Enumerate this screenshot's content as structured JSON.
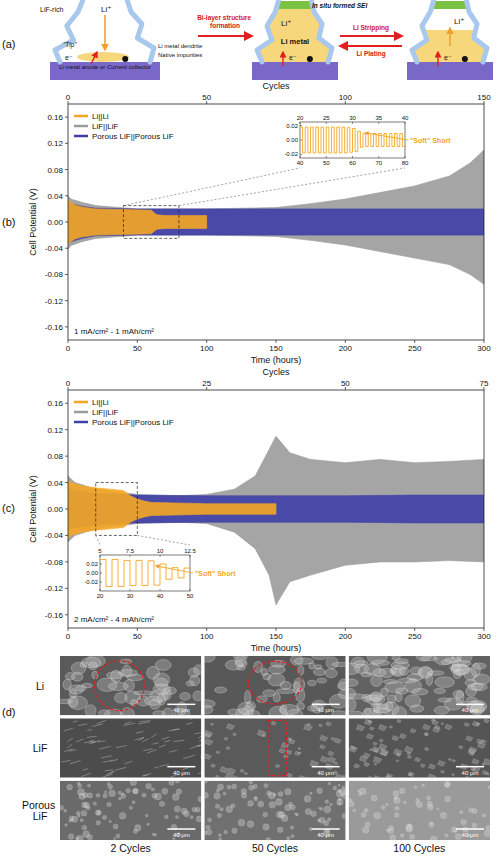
{
  "panel_labels": [
    "(a)",
    "(b)",
    "(c)",
    "(d)"
  ],
  "diagram": {
    "lif_rich": "LiF-rich",
    "tip": "\"Tip\"",
    "dendrite": "Li metal dendrite",
    "impurities": "Native impurities",
    "substrate": "Li metal anode or Current collector",
    "formation": "Bi-layer structure formation",
    "sei": "In situ formed SEI",
    "stripping": "Li Stripping",
    "plating": "Li Plating",
    "stages": [
      {
        "ion": "Li⁺",
        "electron": "e⁻"
      },
      {
        "ion": "Li⁺",
        "electron": "e⁻",
        "metal": "Li metal"
      },
      {
        "ion": "Li⁺",
        "electron": "e⁻"
      }
    ]
  },
  "chart_data": [
    {
      "type": "line",
      "x_label": "Time (hours)",
      "x2_label": "Cycles",
      "y_label": "Cell Potential (V)",
      "xlim": [
        0,
        300
      ],
      "xticks": [
        0,
        50,
        100,
        150,
        200,
        250,
        300
      ],
      "x2lim": [
        0,
        150
      ],
      "x2ticks": [
        0,
        50,
        100,
        150
      ],
      "ylim": [
        -0.18,
        0.18
      ],
      "yticks": [
        -0.16,
        -0.12,
        -0.08,
        -0.04,
        {
          "value": 0,
          "label": "0.00"
        },
        0.04,
        0.08,
        0.12,
        0.16
      ],
      "legend": "upper left",
      "annotation": "1 mA/cm² - 1 mAh/cm²",
      "series": [
        {
          "name": "Li||Li",
          "color": "#f5a623",
          "x": [
            0,
            2,
            5,
            10,
            20,
            40,
            60,
            64,
            70,
            80,
            90,
            100
          ],
          "upper": [
            0.035,
            0.03,
            0.026,
            0.023,
            0.02,
            0.019,
            0.018,
            0.011,
            0.01,
            0.01,
            0.01,
            0.01
          ],
          "lower": [
            -0.033,
            -0.03,
            -0.026,
            -0.023,
            -0.02,
            -0.019,
            -0.018,
            -0.011,
            -0.01,
            -0.01,
            -0.01,
            -0.01
          ]
        },
        {
          "name": "LiF||LiF",
          "color": "#9b9b9b",
          "x": [
            0,
            2,
            10,
            20,
            50,
            100,
            150,
            175,
            200,
            225,
            250,
            275,
            290,
            300
          ],
          "upper": [
            0.04,
            0.035,
            0.03,
            0.025,
            0.02,
            0.02,
            0.022,
            0.028,
            0.035,
            0.045,
            0.055,
            0.07,
            0.09,
            0.11
          ],
          "lower": [
            -0.042,
            -0.036,
            -0.03,
            -0.025,
            -0.02,
            -0.02,
            -0.022,
            -0.028,
            -0.035,
            -0.045,
            -0.055,
            -0.065,
            -0.08,
            -0.095
          ]
        },
        {
          "name": "Porous LiF||Porous LiF",
          "color": "#3f3fa8",
          "x": [
            0,
            2,
            10,
            20,
            50,
            100,
            150,
            200,
            250,
            300
          ],
          "upper": [
            0.03,
            0.028,
            0.024,
            0.021,
            0.02,
            0.02,
            0.02,
            0.02,
            0.02,
            0.02
          ],
          "lower": [
            -0.032,
            -0.03,
            -0.025,
            -0.021,
            -0.02,
            -0.02,
            -0.02,
            -0.02,
            -0.02,
            -0.02
          ]
        }
      ],
      "inset": {
        "type": "line",
        "line_style": "step",
        "color": "#f5a623",
        "annotation": "\"Soft\" Short",
        "xlim": [
          40,
          80
        ],
        "xticks": [
          40,
          50,
          60,
          70,
          80
        ],
        "x2lim": [
          20,
          40
        ],
        "x2ticks": [
          20,
          25,
          30,
          35,
          40
        ],
        "ylim": [
          -0.025,
          0.025
        ],
        "yticks": [
          -0.02,
          {
            "value": 0,
            "label": "0.00"
          },
          0.02
        ],
        "x": [
          40,
          41,
          42,
          43,
          44,
          45,
          46,
          47,
          48,
          49,
          50,
          51,
          52,
          53,
          54,
          55,
          56,
          57,
          58,
          59,
          60,
          61,
          62,
          63,
          64,
          65,
          66,
          67,
          68,
          69,
          70,
          71,
          72,
          73,
          74,
          75,
          76,
          77,
          78,
          79,
          80
        ],
        "values": [
          0.018,
          -0.018,
          0.018,
          -0.018,
          0.018,
          -0.018,
          0.018,
          -0.018,
          0.018,
          -0.018,
          0.018,
          -0.018,
          0.018,
          -0.018,
          0.018,
          -0.018,
          0.018,
          -0.018,
          0.017,
          -0.017,
          0.016,
          -0.016,
          0.012,
          -0.01,
          0.009,
          -0.009,
          0.009,
          -0.009,
          0.009,
          -0.009,
          0.009,
          -0.009,
          0.009,
          -0.009,
          0.009,
          -0.009,
          0.009,
          -0.009,
          0.009,
          -0.009,
          -0.009
        ]
      }
    },
    {
      "type": "line",
      "x_label": "Time (hours)",
      "x2_label": "Cycles",
      "y_label": "Cell Potential (V)",
      "xlim": [
        0,
        300
      ],
      "xticks": [
        0,
        50,
        100,
        150,
        200,
        250,
        300
      ],
      "x2lim": [
        0,
        75
      ],
      "x2ticks": [
        0,
        25,
        50,
        75
      ],
      "ylim": [
        -0.18,
        0.18
      ],
      "yticks": [
        -0.16,
        -0.12,
        -0.08,
        -0.04,
        {
          "value": 0,
          "label": "0.00"
        },
        0.04,
        0.08,
        0.12,
        0.16
      ],
      "legend": "upper left",
      "annotation": "2 mA/cm² - 4 mAh/cm²",
      "series": [
        {
          "name": "Li||Li",
          "color": "#f5a623",
          "x": [
            0,
            2,
            10,
            20,
            30,
            40,
            45,
            50,
            55,
            60,
            100,
            150
          ],
          "upper": [
            0.045,
            0.04,
            0.035,
            0.032,
            0.03,
            0.028,
            0.02,
            0.015,
            0.012,
            0.01,
            0.008,
            0.008
          ],
          "lower": [
            -0.045,
            -0.04,
            -0.035,
            -0.032,
            -0.03,
            -0.028,
            -0.02,
            -0.015,
            -0.012,
            -0.01,
            -0.008,
            -0.008
          ]
        },
        {
          "name": "LiF||LiF",
          "color": "#9b9b9b",
          "x": [
            0,
            5,
            20,
            50,
            80,
            100,
            120,
            135,
            145,
            150,
            160,
            175,
            200,
            225,
            250,
            275,
            300
          ],
          "upper": [
            0.05,
            0.04,
            0.03,
            0.022,
            0.02,
            0.022,
            0.03,
            0.05,
            0.09,
            0.11,
            0.085,
            0.075,
            0.07,
            0.075,
            0.07,
            0.072,
            0.075
          ],
          "lower": [
            -0.05,
            -0.04,
            -0.03,
            -0.022,
            -0.02,
            -0.022,
            -0.035,
            -0.06,
            -0.1,
            -0.145,
            -0.11,
            -0.1,
            -0.085,
            -0.08,
            -0.08,
            -0.078,
            -0.08
          ]
        },
        {
          "name": "Porous LiF||Porous LiF",
          "color": "#3f3fa8",
          "x": [
            0,
            5,
            20,
            50,
            100,
            150,
            200,
            250,
            300
          ],
          "upper": [
            0.03,
            0.028,
            0.024,
            0.021,
            0.02,
            0.02,
            0.02,
            0.021,
            0.021
          ],
          "lower": [
            -0.03,
            -0.028,
            -0.024,
            -0.021,
            -0.02,
            -0.02,
            -0.02,
            -0.021,
            -0.021
          ]
        }
      ],
      "inset": {
        "type": "line",
        "line_style": "step",
        "color": "#f5a623",
        "annotation": "\"Soft\" Short",
        "xlim": [
          20,
          50
        ],
        "xticks": [
          20,
          30,
          40,
          50
        ],
        "x2lim": [
          5,
          12.5
        ],
        "x2ticks": [
          5,
          7.5,
          10,
          12.5
        ],
        "ylim": [
          -0.04,
          0.04
        ],
        "yticks": [
          -0.02,
          {
            "value": 0,
            "label": "0.00"
          },
          0.02
        ],
        "x": [
          20,
          22,
          24,
          26,
          28,
          30,
          32,
          34,
          36,
          38,
          40,
          42,
          44,
          46,
          48,
          50
        ],
        "values": [
          0.03,
          -0.03,
          0.03,
          -0.03,
          0.028,
          -0.028,
          0.028,
          -0.028,
          0.027,
          -0.027,
          0.02,
          -0.014,
          0.012,
          -0.011,
          0.011,
          -0.011
        ]
      }
    }
  ],
  "sem": {
    "columns": [
      "2 Cycles",
      "50 Cycles",
      "100 Cycles"
    ],
    "rows": [
      {
        "label": "Li",
        "scale_bars": [
          "40 μm",
          "40 μm",
          "40 μm"
        ]
      },
      {
        "label": "LiF",
        "scale_bars": [
          "40 μm",
          "40 μm",
          "40 μm"
        ]
      },
      {
        "label": "Porous LiF",
        "scale_bars": [
          "40 μm",
          "40 μm",
          "40 μm"
        ]
      }
    ]
  }
}
